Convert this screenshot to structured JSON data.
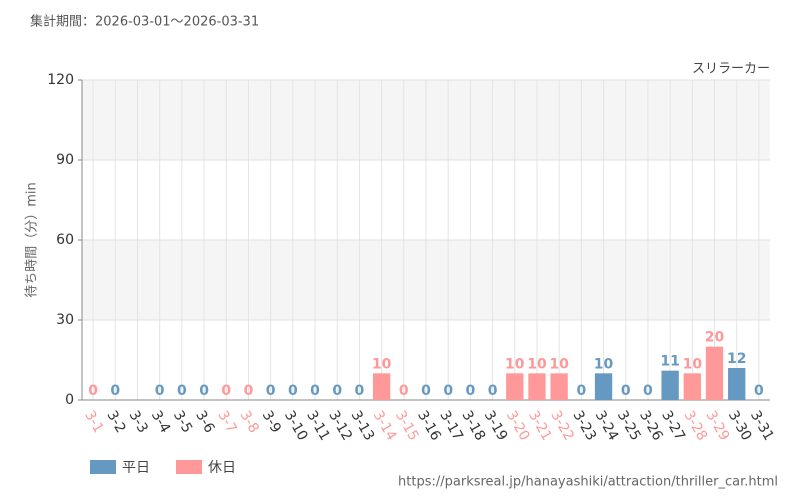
{
  "chart_data": {
    "type": "bar",
    "title": "集計期間：2026-03-01～2026-03-31",
    "subtitle": "スリラーカー",
    "y_label": "待ち時間（分）min",
    "source": "https://parksreal.jp/hanayashiki/attraction/thriller_car.html",
    "categories": [
      "3-1",
      "3-2",
      "3-3",
      "3-4",
      "3-5",
      "3-6",
      "3-7",
      "3-8",
      "3-9",
      "3-10",
      "3-11",
      "3-12",
      "3-13",
      "3-14",
      "3-15",
      "3-16",
      "3-17",
      "3-18",
      "3-19",
      "3-20",
      "3-21",
      "3-22",
      "3-23",
      "3-24",
      "3-25",
      "3-26",
      "3-27",
      "3-28",
      "3-29",
      "3-30",
      "3-31"
    ],
    "series": [
      {
        "name": "平日",
        "color": "#6699c2",
        "values": [
          null,
          0,
          null,
          0,
          0,
          0,
          null,
          null,
          0,
          0,
          0,
          0,
          0,
          null,
          null,
          0,
          0,
          0,
          0,
          null,
          null,
          null,
          0,
          10,
          0,
          0,
          11,
          null,
          null,
          12,
          0
        ]
      },
      {
        "name": "休日",
        "color": "#ff9999",
        "values": [
          0,
          null,
          null,
          null,
          null,
          null,
          0,
          0,
          null,
          null,
          null,
          null,
          null,
          10,
          0,
          null,
          null,
          null,
          null,
          10,
          10,
          10,
          null,
          null,
          null,
          null,
          null,
          10,
          20,
          null,
          null
        ]
      }
    ],
    "ylim": [
      0,
      120
    ],
    "yticks": [
      0,
      30,
      60,
      90,
      120
    ],
    "grid": true,
    "legend": "bottom-left"
  }
}
